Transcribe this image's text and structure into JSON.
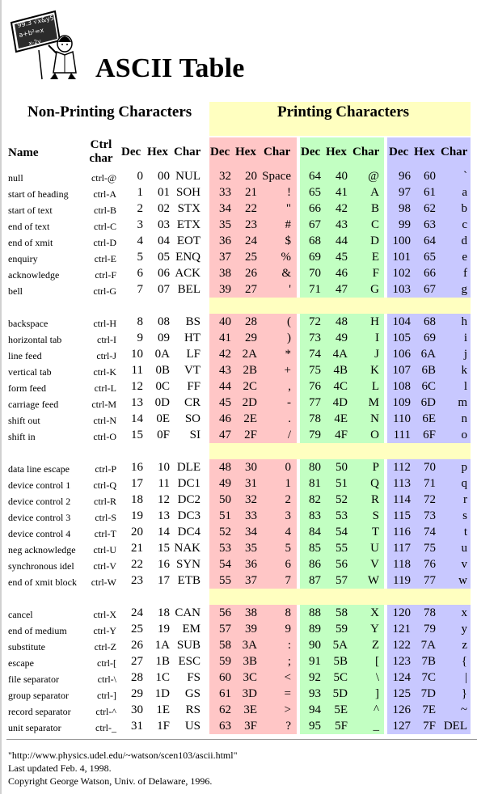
{
  "title": "ASCII Table",
  "sections": {
    "non_printing": "Non-Printing Characters",
    "printing": "Printing Characters"
  },
  "headers": {
    "name": "Name",
    "ctrl": "Ctrl char",
    "dec": "Dec",
    "hex": "Hex",
    "char": "Char"
  },
  "colors": {
    "yellow": "#ffffc0",
    "red": "#ffc6c6",
    "green": "#c2ffc2",
    "blue": "#c8c8ff"
  },
  "rows": [
    {
      "name": "null",
      "ctrl": "ctrl-@",
      "dec": "0",
      "hex": "00",
      "char": "NUL",
      "p": [
        [
          "32",
          "20",
          "Space"
        ],
        [
          "64",
          "40",
          "@"
        ],
        [
          "96",
          "60",
          "`"
        ]
      ]
    },
    {
      "name": "start of heading",
      "ctrl": "ctrl-A",
      "dec": "1",
      "hex": "01",
      "char": "SOH",
      "p": [
        [
          "33",
          "21",
          "!"
        ],
        [
          "65",
          "41",
          "A"
        ],
        [
          "97",
          "61",
          "a"
        ]
      ]
    },
    {
      "name": "start of text",
      "ctrl": "ctrl-B",
      "dec": "2",
      "hex": "02",
      "char": "STX",
      "p": [
        [
          "34",
          "22",
          "\""
        ],
        [
          "66",
          "42",
          "B"
        ],
        [
          "98",
          "62",
          "b"
        ]
      ]
    },
    {
      "name": "end of text",
      "ctrl": "ctrl-C",
      "dec": "3",
      "hex": "03",
      "char": "ETX",
      "p": [
        [
          "35",
          "23",
          "#"
        ],
        [
          "67",
          "43",
          "C"
        ],
        [
          "99",
          "63",
          "c"
        ]
      ]
    },
    {
      "name": "end of xmit",
      "ctrl": "ctrl-D",
      "dec": "4",
      "hex": "04",
      "char": "EOT",
      "p": [
        [
          "36",
          "24",
          "$"
        ],
        [
          "68",
          "44",
          "D"
        ],
        [
          "100",
          "64",
          "d"
        ]
      ]
    },
    {
      "name": "enquiry",
      "ctrl": "ctrl-E",
      "dec": "5",
      "hex": "05",
      "char": "ENQ",
      "p": [
        [
          "37",
          "25",
          "%"
        ],
        [
          "69",
          "45",
          "E"
        ],
        [
          "101",
          "65",
          "e"
        ]
      ]
    },
    {
      "name": "acknowledge",
      "ctrl": "ctrl-F",
      "dec": "6",
      "hex": "06",
      "char": "ACK",
      "p": [
        [
          "38",
          "26",
          "&"
        ],
        [
          "70",
          "46",
          "F"
        ],
        [
          "102",
          "66",
          "f"
        ]
      ]
    },
    {
      "name": "bell",
      "ctrl": "ctrl-G",
      "dec": "7",
      "hex": "07",
      "char": "BEL",
      "p": [
        [
          "39",
          "27",
          "'"
        ],
        [
          "71",
          "47",
          "G"
        ],
        [
          "103",
          "67",
          "g"
        ]
      ]
    },
    {
      "name": "backspace",
      "ctrl": "ctrl-H",
      "dec": "8",
      "hex": "08",
      "char": "BS",
      "p": [
        [
          "40",
          "28",
          "("
        ],
        [
          "72",
          "48",
          "H"
        ],
        [
          "104",
          "68",
          "h"
        ]
      ]
    },
    {
      "name": "horizontal tab",
      "ctrl": "ctrl-I",
      "dec": "9",
      "hex": "09",
      "char": "HT",
      "p": [
        [
          "41",
          "29",
          ")"
        ],
        [
          "73",
          "49",
          "I"
        ],
        [
          "105",
          "69",
          "i"
        ]
      ]
    },
    {
      "name": "line feed",
      "ctrl": "ctrl-J",
      "dec": "10",
      "hex": "0A",
      "char": "LF",
      "p": [
        [
          "42",
          "2A",
          "*"
        ],
        [
          "74",
          "4A",
          "J"
        ],
        [
          "106",
          "6A",
          "j"
        ]
      ]
    },
    {
      "name": "vertical tab",
      "ctrl": "ctrl-K",
      "dec": "11",
      "hex": "0B",
      "char": "VT",
      "p": [
        [
          "43",
          "2B",
          "+"
        ],
        [
          "75",
          "4B",
          "K"
        ],
        [
          "107",
          "6B",
          "k"
        ]
      ]
    },
    {
      "name": "form feed",
      "ctrl": "ctrl-L",
      "dec": "12",
      "hex": "0C",
      "char": "FF",
      "p": [
        [
          "44",
          "2C",
          ","
        ],
        [
          "76",
          "4C",
          "L"
        ],
        [
          "108",
          "6C",
          "l"
        ]
      ]
    },
    {
      "name": "carriage feed",
      "ctrl": "ctrl-M",
      "dec": "13",
      "hex": "0D",
      "char": "CR",
      "p": [
        [
          "45",
          "2D",
          "-"
        ],
        [
          "77",
          "4D",
          "M"
        ],
        [
          "109",
          "6D",
          "m"
        ]
      ]
    },
    {
      "name": "shift out",
      "ctrl": "ctrl-N",
      "dec": "14",
      "hex": "0E",
      "char": "SO",
      "p": [
        [
          "46",
          "2E",
          "."
        ],
        [
          "78",
          "4E",
          "N"
        ],
        [
          "110",
          "6E",
          "n"
        ]
      ]
    },
    {
      "name": "shift in",
      "ctrl": "ctrl-O",
      "dec": "15",
      "hex": "0F",
      "char": "SI",
      "p": [
        [
          "47",
          "2F",
          "/"
        ],
        [
          "79",
          "4F",
          "O"
        ],
        [
          "111",
          "6F",
          "o"
        ]
      ]
    },
    {
      "name": "data line escape",
      "ctrl": "ctrl-P",
      "dec": "16",
      "hex": "10",
      "char": "DLE",
      "p": [
        [
          "48",
          "30",
          "0"
        ],
        [
          "80",
          "50",
          "P"
        ],
        [
          "112",
          "70",
          "p"
        ]
      ]
    },
    {
      "name": "device control 1",
      "ctrl": "ctrl-Q",
      "dec": "17",
      "hex": "11",
      "char": "DC1",
      "p": [
        [
          "49",
          "31",
          "1"
        ],
        [
          "81",
          "51",
          "Q"
        ],
        [
          "113",
          "71",
          "q"
        ]
      ]
    },
    {
      "name": "device control 2",
      "ctrl": "ctrl-R",
      "dec": "18",
      "hex": "12",
      "char": "DC2",
      "p": [
        [
          "50",
          "32",
          "2"
        ],
        [
          "82",
          "52",
          "R"
        ],
        [
          "114",
          "72",
          "r"
        ]
      ]
    },
    {
      "name": "device control 3",
      "ctrl": "ctrl-S",
      "dec": "19",
      "hex": "13",
      "char": "DC3",
      "p": [
        [
          "51",
          "33",
          "3"
        ],
        [
          "83",
          "53",
          "S"
        ],
        [
          "115",
          "73",
          "s"
        ]
      ]
    },
    {
      "name": "device control 4",
      "ctrl": "ctrl-T",
      "dec": "20",
      "hex": "14",
      "char": "DC4",
      "p": [
        [
          "52",
          "34",
          "4"
        ],
        [
          "84",
          "54",
          "T"
        ],
        [
          "116",
          "74",
          "t"
        ]
      ]
    },
    {
      "name": "neg acknowledge",
      "ctrl": "ctrl-U",
      "dec": "21",
      "hex": "15",
      "char": "NAK",
      "p": [
        [
          "53",
          "35",
          "5"
        ],
        [
          "85",
          "55",
          "U"
        ],
        [
          "117",
          "75",
          "u"
        ]
      ]
    },
    {
      "name": "synchronous idel",
      "ctrl": "ctrl-V",
      "dec": "22",
      "hex": "16",
      "char": "SYN",
      "p": [
        [
          "54",
          "36",
          "6"
        ],
        [
          "86",
          "56",
          "V"
        ],
        [
          "118",
          "76",
          "v"
        ]
      ]
    },
    {
      "name": "end of xmit block",
      "ctrl": "ctrl-W",
      "dec": "23",
      "hex": "17",
      "char": "ETB",
      "p": [
        [
          "55",
          "37",
          "7"
        ],
        [
          "87",
          "57",
          "W"
        ],
        [
          "119",
          "77",
          "w"
        ]
      ]
    },
    {
      "name": "cancel",
      "ctrl": "ctrl-X",
      "dec": "24",
      "hex": "18",
      "char": "CAN",
      "p": [
        [
          "56",
          "38",
          "8"
        ],
        [
          "88",
          "58",
          "X"
        ],
        [
          "120",
          "78",
          "x"
        ]
      ]
    },
    {
      "name": "end of medium",
      "ctrl": "ctrl-Y",
      "dec": "25",
      "hex": "19",
      "char": "EM",
      "p": [
        [
          "57",
          "39",
          "9"
        ],
        [
          "89",
          "59",
          "Y"
        ],
        [
          "121",
          "79",
          "y"
        ]
      ]
    },
    {
      "name": "substitute",
      "ctrl": "ctrl-Z",
      "dec": "26",
      "hex": "1A",
      "char": "SUB",
      "p": [
        [
          "58",
          "3A",
          ":"
        ],
        [
          "90",
          "5A",
          "Z"
        ],
        [
          "122",
          "7A",
          "z"
        ]
      ]
    },
    {
      "name": "escape",
      "ctrl": "ctrl-[",
      "dec": "27",
      "hex": "1B",
      "char": "ESC",
      "p": [
        [
          "59",
          "3B",
          ";"
        ],
        [
          "91",
          "5B",
          "["
        ],
        [
          "123",
          "7B",
          "{"
        ]
      ]
    },
    {
      "name": "file separator",
      "ctrl": "ctrl-\\",
      "dec": "28",
      "hex": "1C",
      "char": "FS",
      "p": [
        [
          "60",
          "3C",
          "<"
        ],
        [
          "92",
          "5C",
          "\\"
        ],
        [
          "124",
          "7C",
          "|"
        ]
      ]
    },
    {
      "name": "group separator",
      "ctrl": "ctrl-]",
      "dec": "29",
      "hex": "1D",
      "char": "GS",
      "p": [
        [
          "61",
          "3D",
          "="
        ],
        [
          "93",
          "5D",
          "]"
        ],
        [
          "125",
          "7D",
          "}"
        ]
      ]
    },
    {
      "name": "record separator",
      "ctrl": "ctrl-^",
      "dec": "30",
      "hex": "1E",
      "char": "RS",
      "p": [
        [
          "62",
          "3E",
          ">"
        ],
        [
          "94",
          "5E",
          "^"
        ],
        [
          "126",
          "7E",
          "~"
        ]
      ]
    },
    {
      "name": "unit separator",
      "ctrl": "ctrl-_",
      "dec": "31",
      "hex": "1F",
      "char": "US",
      "p": [
        [
          "63",
          "3F",
          "?"
        ],
        [
          "95",
          "5F",
          "_"
        ],
        [
          "127",
          "7F",
          "DEL"
        ]
      ]
    }
  ],
  "footer": {
    "url": "\"http://www.physics.udel.edu/~watson/scen103/ascii.html\"",
    "updated": "Last updated Feb. 4, 1998.",
    "copyright": "Copyright George Watson, Univ. of Delaware, 1996."
  }
}
